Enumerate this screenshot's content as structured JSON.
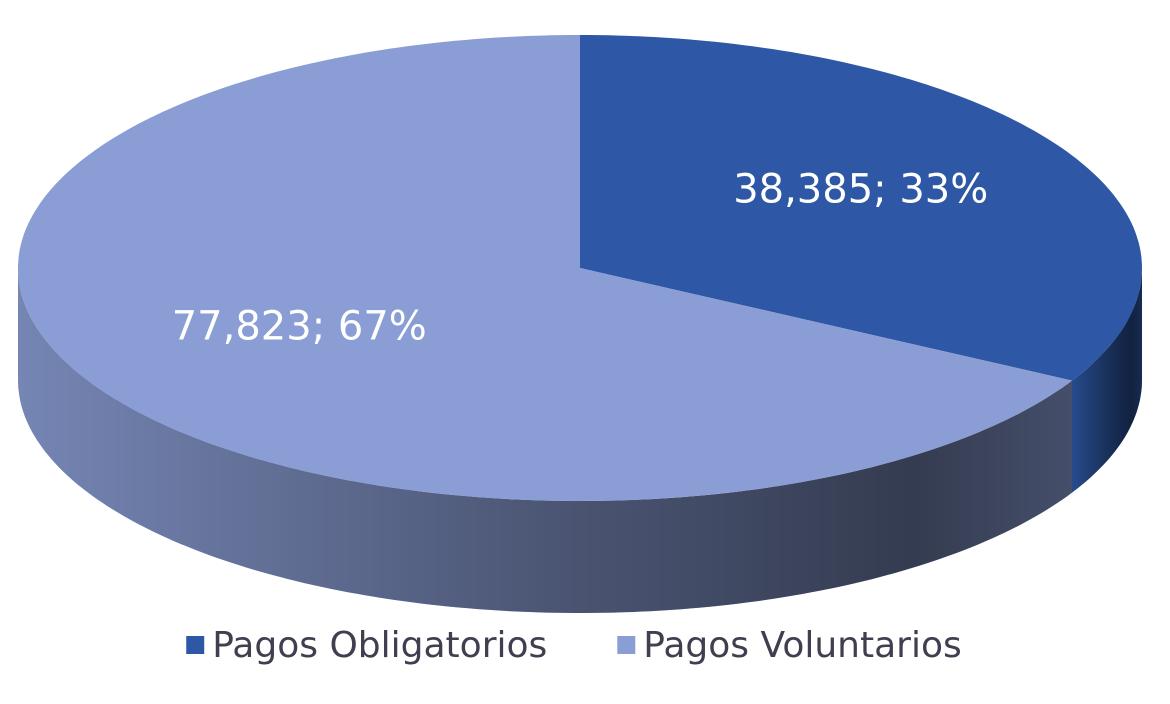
{
  "chart_data": {
    "type": "pie",
    "categories": [
      "Pagos Obligatorios",
      "Pagos Voluntarios"
    ],
    "values": [
      38385,
      77823
    ],
    "value_labels": [
      "38,385; 33%",
      "77,823; 67%"
    ],
    "colors": [
      "#2e58a6",
      "#8a9dd4"
    ],
    "legend": "bottom"
  }
}
